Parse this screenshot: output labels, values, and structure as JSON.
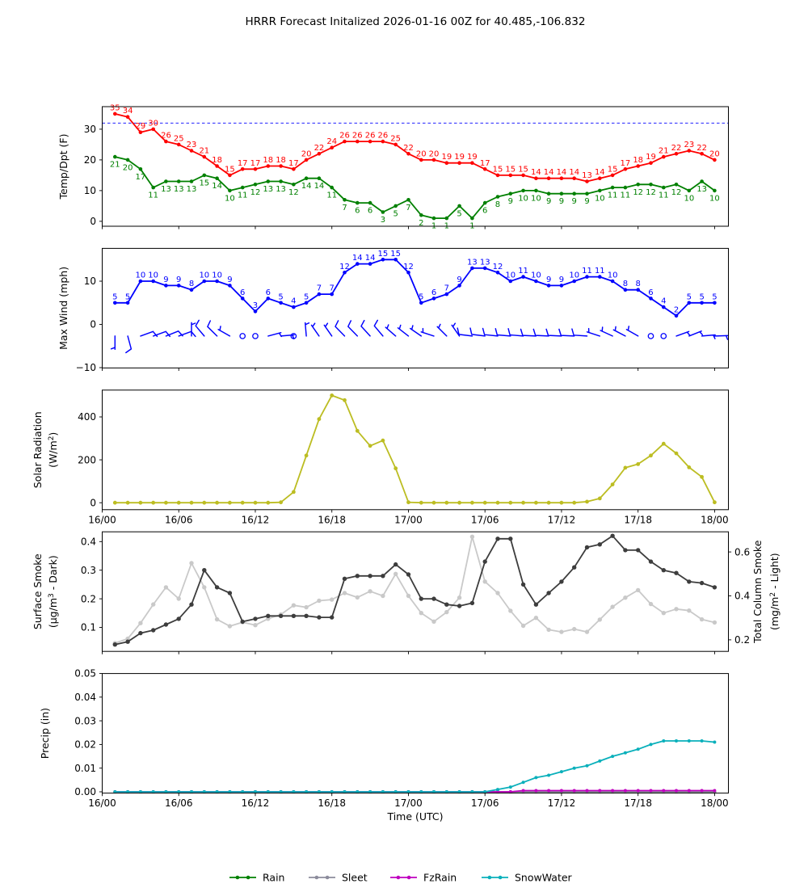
{
  "title": "HRRR Forecast Initalized 2026-01-16 00Z for 40.485,-106.832",
  "x_axis": {
    "label": "Time (UTC)",
    "tick_hours": [
      0,
      6,
      12,
      18,
      24,
      30,
      36,
      42,
      48
    ],
    "tick_labels": [
      "16/00",
      "16/06",
      "16/12",
      "16/18",
      "17/00",
      "17/06",
      "17/12",
      "17/18",
      "18/00"
    ]
  },
  "forecast_hours": [
    1,
    2,
    3,
    4,
    5,
    6,
    7,
    8,
    9,
    10,
    11,
    12,
    13,
    14,
    15,
    16,
    17,
    18,
    19,
    20,
    21,
    22,
    23,
    24,
    25,
    26,
    27,
    28,
    29,
    30,
    31,
    32,
    33,
    34,
    35,
    36,
    37,
    38,
    39,
    40,
    41,
    42,
    43,
    44,
    45,
    46,
    47,
    48
  ],
  "legend": {
    "items": [
      {
        "label": "Rain",
        "color": "#008000"
      },
      {
        "label": "Sleet",
        "color": "#8c8c9c"
      },
      {
        "label": "FzRain",
        "color": "#bf00bf"
      },
      {
        "label": "SnowWater",
        "color": "#0ab0bb"
      }
    ]
  },
  "chart_data": [
    {
      "id": "temp",
      "type": "line",
      "ylabel": [
        "Temp/Dpt (F)"
      ],
      "yticks": {
        "values": [
          0,
          10,
          20,
          30
        ],
        "labels": [
          "0",
          "10",
          "20",
          "30"
        ]
      },
      "ref_line": {
        "value": 32,
        "color": "#0000ff",
        "style": "dashed"
      },
      "show_x_tick_labels": false,
      "series": [
        {
          "name": "temperature_f",
          "color": "#ff0000",
          "point_labels": "above",
          "values": [
            35,
            34,
            29,
            30,
            26,
            25,
            23,
            21,
            18,
            15,
            17,
            17,
            18,
            18,
            17,
            20,
            22,
            24,
            26,
            26,
            26,
            26,
            25,
            22,
            20,
            20,
            19,
            19,
            19,
            17,
            15,
            15,
            15,
            14,
            14,
            14,
            14,
            13,
            14,
            15,
            17,
            18,
            19,
            21,
            22,
            23,
            22,
            20
          ]
        },
        {
          "name": "dewpoint_f",
          "color": "#008000",
          "point_labels": "below",
          "values": [
            21,
            20,
            17,
            11,
            13,
            13,
            13,
            15,
            14,
            10,
            11,
            12,
            13,
            13,
            12,
            14,
            14,
            11,
            7,
            6,
            6,
            3,
            5,
            7,
            2,
            1,
            1,
            5,
            1,
            6,
            8,
            9,
            10,
            10,
            9,
            9,
            9,
            9,
            10,
            11,
            11,
            12,
            12,
            11,
            12,
            10,
            13,
            10
          ]
        }
      ]
    },
    {
      "id": "wind",
      "type": "line",
      "ylabel": [
        "Max Wind (mph)"
      ],
      "yticks": {
        "values": [
          -10,
          0,
          10
        ],
        "labels": [
          "−10",
          "0",
          "10"
        ]
      },
      "show_x_tick_labels": false,
      "series": [
        {
          "name": "max_wind_mph",
          "color": "#0000ff",
          "point_labels": "above",
          "values": [
            5,
            5,
            10,
            10,
            9,
            9,
            8,
            10,
            10,
            9,
            6,
            3,
            6,
            5,
            4,
            5,
            7,
            7,
            12,
            14,
            14,
            15,
            15,
            12,
            5,
            6,
            7,
            9,
            13,
            13,
            12,
            10,
            11,
            10,
            9,
            9,
            10,
            11,
            11,
            10,
            8,
            8,
            6,
            4,
            2,
            5,
            5,
            5
          ]
        }
      ],
      "barbs": {
        "name": "wind_barbs",
        "color": "#0000ff",
        "anchor_value": -2.7,
        "list": [
          {
            "dir": 180,
            "type": "half"
          },
          {
            "dir": 165,
            "type": "full"
          },
          {
            "dir": 70,
            "type": "full"
          },
          {
            "dir": 70,
            "type": "full"
          },
          {
            "dir": 68,
            "type": "full"
          },
          {
            "dir": 70,
            "type": "full"
          },
          {
            "dir": 0,
            "type": "half"
          },
          {
            "dir": 320,
            "type": "full"
          },
          {
            "dir": 315,
            "type": "full"
          },
          {
            "dir": 300,
            "type": "half"
          },
          {
            "dir": 0,
            "type": "calm"
          },
          {
            "dir": 0,
            "type": "calm"
          },
          {
            "dir": 75,
            "type": "half"
          },
          {
            "dir": 85,
            "type": "half"
          },
          {
            "dir": 0,
            "type": "calm"
          },
          {
            "dir": 355,
            "type": "half"
          },
          {
            "dir": 325,
            "type": "half"
          },
          {
            "dir": 325,
            "type": "half"
          },
          {
            "dir": 316,
            "type": "full"
          },
          {
            "dir": 316,
            "type": "full"
          },
          {
            "dir": 318,
            "type": "full"
          },
          {
            "dir": 320,
            "type": "full"
          },
          {
            "dir": 311,
            "type": "half"
          },
          {
            "dir": 308,
            "type": "half"
          },
          {
            "dir": 305,
            "type": "half"
          },
          {
            "dir": 288,
            "type": "half"
          },
          {
            "dir": 315,
            "type": "half"
          },
          {
            "dir": 325,
            "type": "half"
          },
          {
            "dir": 277,
            "type": "full"
          },
          {
            "dir": 277,
            "type": "full"
          },
          {
            "dir": 276,
            "type": "full"
          },
          {
            "dir": 275,
            "type": "full"
          },
          {
            "dir": 275,
            "type": "full"
          },
          {
            "dir": 273,
            "type": "full"
          },
          {
            "dir": 273,
            "type": "full"
          },
          {
            "dir": 273,
            "type": "full"
          },
          {
            "dir": 273,
            "type": "full"
          },
          {
            "dir": 274,
            "type": "full"
          },
          {
            "dir": 288,
            "type": "half"
          },
          {
            "dir": 295,
            "type": "half"
          },
          {
            "dir": 298,
            "type": "half"
          },
          {
            "dir": 300,
            "type": "half"
          },
          {
            "dir": 0,
            "type": "calm"
          },
          {
            "dir": 0,
            "type": "calm"
          },
          {
            "dir": 70,
            "type": "half"
          },
          {
            "dir": 68,
            "type": "half"
          },
          {
            "dir": 85,
            "type": "half"
          },
          {
            "dir": 88,
            "type": "half"
          }
        ]
      }
    },
    {
      "id": "solar",
      "type": "line",
      "ylabel": [
        "Solar Radiation",
        "(W/m²)"
      ],
      "yticks": {
        "values": [
          0,
          200,
          400
        ],
        "labels": [
          "0",
          "200",
          "400"
        ]
      },
      "show_x_tick_labels": true,
      "series": [
        {
          "name": "solar_radiation_w_m2",
          "color": "#bcbd22",
          "point_labels": "none",
          "values": [
            0,
            0,
            0,
            0,
            0,
            0,
            0,
            0,
            0,
            0,
            0,
            0,
            0,
            2,
            50,
            220,
            390,
            500,
            478,
            335,
            265,
            290,
            160,
            2,
            0,
            0,
            0,
            0,
            0,
            0,
            0,
            0,
            0,
            0,
            0,
            0,
            0,
            5,
            20,
            85,
            163,
            180,
            220,
            275,
            230,
            165,
            120,
            2
          ]
        }
      ]
    },
    {
      "id": "smoke",
      "type": "line",
      "ylabel": [
        "Surface Smoke",
        "(µg/m³ - Dark)"
      ],
      "ylabel_right": [
        "Total Column Smoke",
        "(mg/m² - Light)"
      ],
      "yticks": {
        "values": [
          0.1,
          0.2,
          0.3,
          0.4
        ],
        "labels": [
          "0.1",
          "0.2",
          "0.3",
          "0.4"
        ]
      },
      "yticks_right": {
        "values": [
          0.2,
          0.4,
          0.6
        ],
        "labels": [
          "0.2",
          "0.4",
          "0.6"
        ]
      },
      "show_x_tick_labels": false,
      "series": [
        {
          "name": "total_column_smoke_mg_m2",
          "axis": "right",
          "color": "#c9c9c9",
          "point_labels": "none",
          "values": [
            0.185,
            0.205,
            0.276,
            0.361,
            0.439,
            0.387,
            0.549,
            0.439,
            0.293,
            0.262,
            0.28,
            0.267,
            0.296,
            0.315,
            0.357,
            0.348,
            0.378,
            0.383,
            0.413,
            0.393,
            0.421,
            0.4,
            0.5,
            0.4,
            0.322,
            0.283,
            0.326,
            0.392,
            0.669,
            0.465,
            0.413,
            0.332,
            0.264,
            0.3,
            0.246,
            0.236,
            0.249,
            0.236,
            0.292,
            0.35,
            0.392,
            0.426,
            0.363,
            0.322,
            0.34,
            0.333,
            0.293,
            0.279
          ]
        },
        {
          "name": "surface_smoke_ug_m3",
          "axis": "left",
          "color": "#3d3d3d",
          "point_labels": "none",
          "values": [
            0.04,
            0.05,
            0.08,
            0.09,
            0.11,
            0.13,
            0.18,
            0.3,
            0.24,
            0.22,
            0.12,
            0.13,
            0.14,
            0.14,
            0.14,
            0.14,
            0.135,
            0.135,
            0.27,
            0.28,
            0.28,
            0.28,
            0.32,
            0.285,
            0.2,
            0.2,
            0.18,
            0.175,
            0.185,
            0.33,
            0.41,
            0.41,
            0.25,
            0.18,
            0.22,
            0.26,
            0.31,
            0.38,
            0.39,
            0.42,
            0.37,
            0.37,
            0.33,
            0.3,
            0.29,
            0.26,
            0.255,
            0.24
          ]
        }
      ]
    },
    {
      "id": "precip",
      "type": "line",
      "ylabel": [
        "Precip (in)"
      ],
      "yticks": {
        "values": [
          0.0,
          0.01,
          0.02,
          0.03,
          0.04,
          0.05
        ],
        "labels": [
          "0.00",
          "0.01",
          "0.02",
          "0.03",
          "0.04",
          "0.05"
        ]
      },
      "show_x_tick_labels": true,
      "show_x_label": true,
      "series": [
        {
          "name": "rain_in",
          "color": "#008000",
          "point_labels": "none",
          "values": [
            0,
            0,
            0,
            0,
            0,
            0,
            0,
            0,
            0,
            0,
            0,
            0,
            0,
            0,
            0,
            0,
            0,
            0,
            0,
            0,
            0,
            0,
            0,
            0,
            0,
            0,
            0,
            0,
            0,
            0,
            0,
            0,
            0,
            0,
            0,
            0,
            0,
            0,
            0,
            0,
            0,
            0,
            0,
            0,
            0,
            0,
            0,
            0
          ]
        },
        {
          "name": "sleet_in",
          "color": "#8c8c9c",
          "point_labels": "none",
          "values": [
            0,
            0,
            0,
            0,
            0,
            0,
            0,
            0,
            0,
            0,
            0,
            0,
            0,
            0,
            0,
            0,
            0,
            0,
            0,
            0,
            0,
            0,
            0,
            0,
            0,
            0,
            0,
            0,
            0,
            0,
            0,
            0,
            0,
            0,
            0,
            0,
            0,
            0,
            0,
            0,
            0,
            0,
            0,
            0,
            0,
            0,
            0,
            0
          ]
        },
        {
          "name": "fzrain_in",
          "color": "#bf00bf",
          "point_labels": "none",
          "values": [
            0,
            0,
            0,
            0,
            0,
            0,
            0,
            0,
            0,
            0,
            0,
            0,
            0,
            0,
            0,
            0,
            0,
            0,
            0,
            0,
            0,
            0,
            0,
            0,
            0,
            0,
            0,
            0,
            0,
            0,
            0,
            0,
            0.0005,
            0.0005,
            0.0005,
            0.0005,
            0.0005,
            0.0005,
            0.0005,
            0.0005,
            0.0005,
            0.0005,
            0.0005,
            0.0005,
            0.0005,
            0.0005,
            0.0005,
            0.0005
          ]
        },
        {
          "name": "snow_water_in",
          "color": "#0ab0bb",
          "point_labels": "none",
          "values": [
            0,
            0,
            0,
            0,
            0,
            0,
            0,
            0,
            0,
            0,
            0,
            0,
            0,
            0,
            0,
            0,
            0,
            0,
            0,
            0,
            0,
            0,
            0,
            0,
            0,
            0,
            0,
            0,
            0,
            0,
            0.001,
            0.002,
            0.004,
            0.006,
            0.007,
            0.0085,
            0.01,
            0.011,
            0.013,
            0.015,
            0.0165,
            0.018,
            0.02,
            0.0215,
            0.0215,
            0.0215,
            0.0215,
            0.021
          ]
        }
      ]
    }
  ]
}
